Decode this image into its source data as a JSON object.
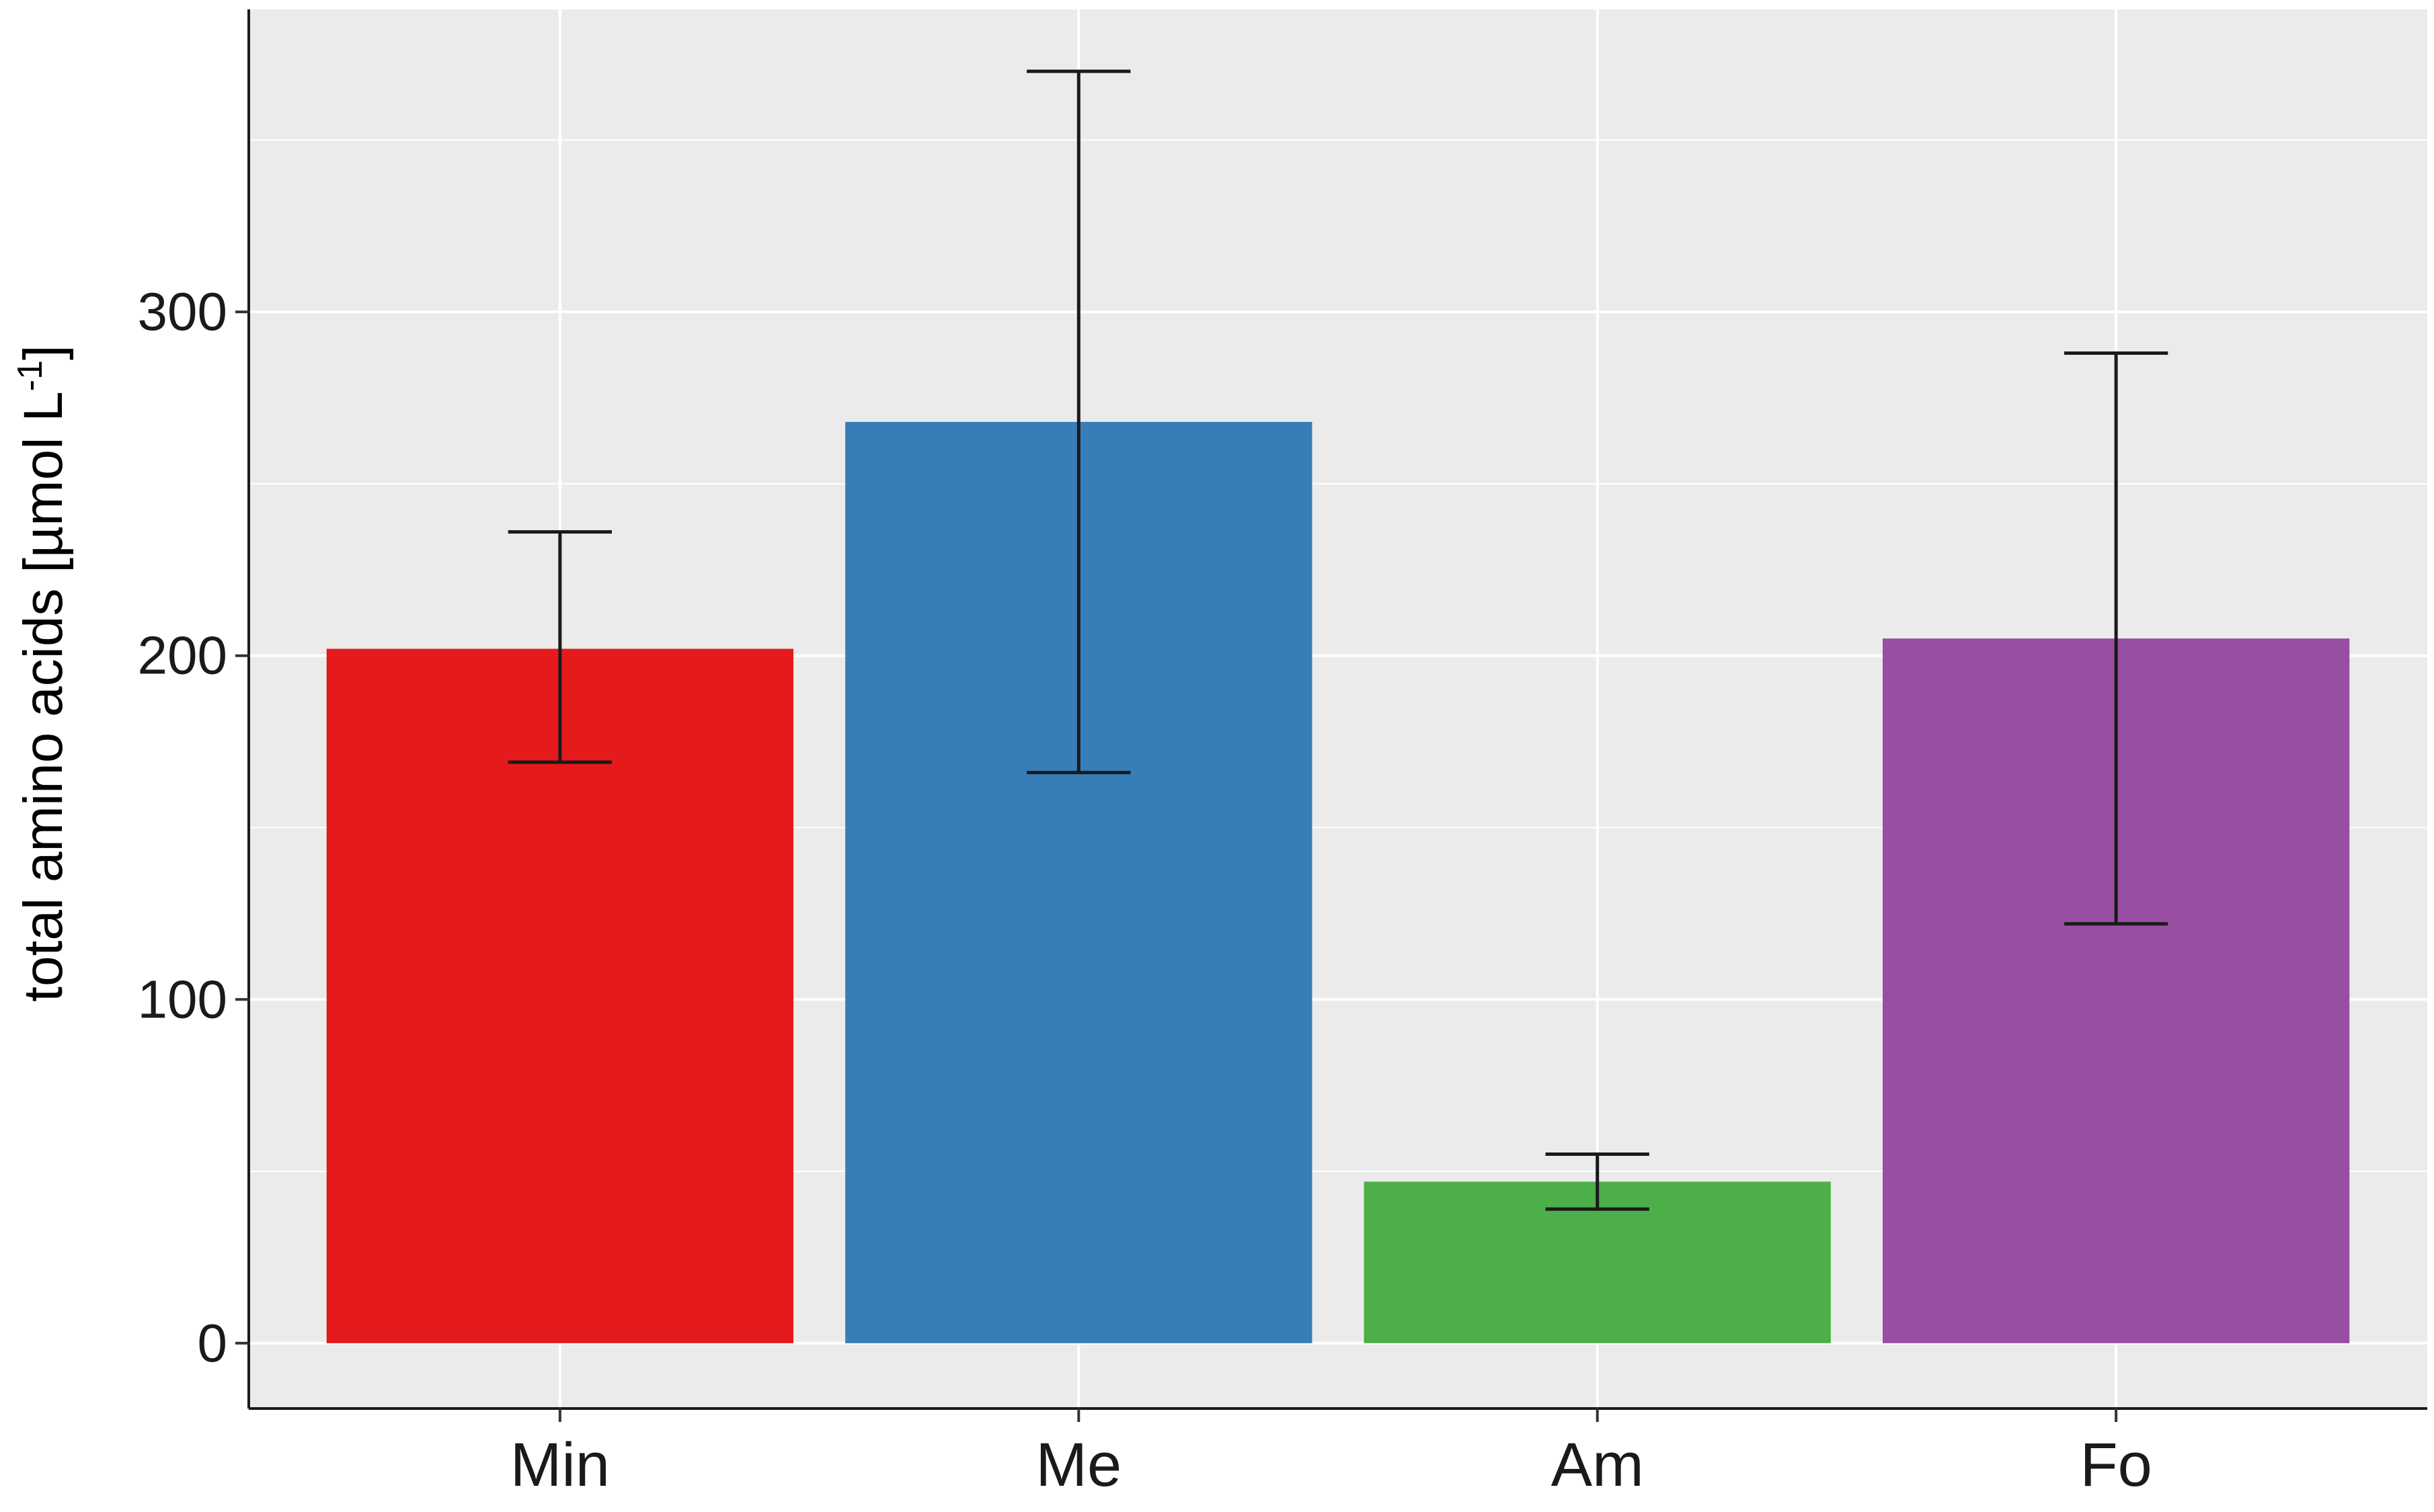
{
  "chart_data": {
    "type": "bar",
    "title": "",
    "xlabel": "",
    "ylabel": "total amino acids [µmol L",
    "ylabel_superscript": "-1",
    "ylabel_suffix": "]",
    "categories": [
      "Min",
      "Me",
      "Am",
      "Fo"
    ],
    "values": [
      202,
      268,
      47,
      205
    ],
    "error_low": [
      169,
      166,
      39,
      122
    ],
    "error_high": [
      236,
      370,
      55,
      288
    ],
    "colors": [
      "#e41a1c",
      "#377eb8",
      "#4daf4a",
      "#984ea3"
    ],
    "ylim": [
      -19,
      388
    ],
    "yticks": [
      0,
      100,
      200,
      300
    ],
    "ytick_labels": [
      "0",
      "100",
      "200",
      "300"
    ],
    "grid": true,
    "panel_background": "#ebebeb",
    "grid_color": "#ffffff",
    "legend": "none"
  }
}
